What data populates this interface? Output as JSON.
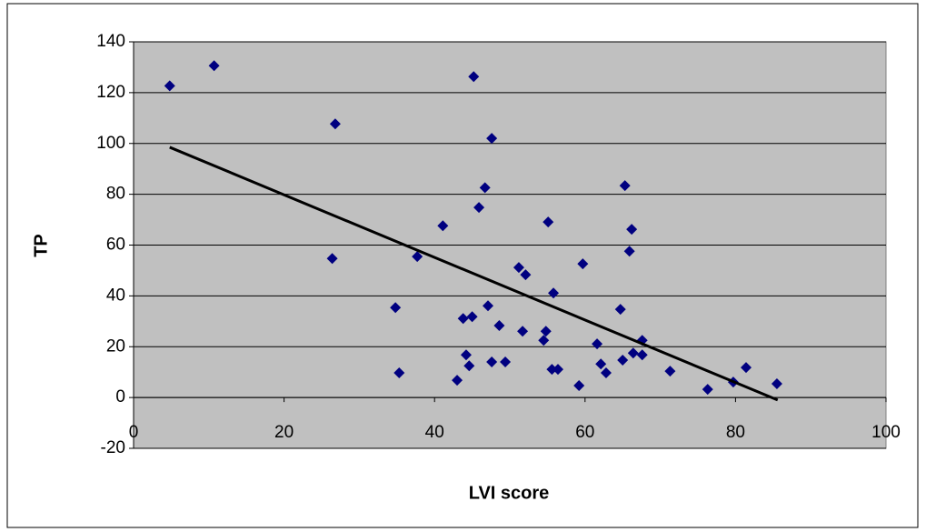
{
  "chart_data": {
    "type": "scatter",
    "x_label": "LVI score",
    "y_label": "TP",
    "x": [
      4.8,
      10.7,
      26.8,
      26.4,
      45.2,
      47.6,
      34.8,
      35.3,
      37.7,
      41.1,
      43.0,
      43.8,
      44.2,
      44.6,
      45.0,
      45.9,
      46.7,
      47.1,
      47.6,
      48.6,
      49.4,
      51.2,
      52.1,
      51.7,
      54.5,
      54.8,
      55.1,
      55.8,
      55.6,
      56.4,
      59.2,
      59.7,
      61.6,
      62.1,
      62.8,
      64.7,
      65.0,
      65.3,
      66.2,
      65.9,
      66.4,
      67.6,
      67.6,
      71.3,
      76.3,
      79.7,
      81.4,
      85.5
    ],
    "values": [
      122.7,
      130.6,
      107.7,
      54.7,
      126.3,
      102,
      35.4,
      9.7,
      55.5,
      67.6,
      6.8,
      31.1,
      16.8,
      12.5,
      31.8,
      74.8,
      82.6,
      36.1,
      14.0,
      28.3,
      14.0,
      51.2,
      48.3,
      26.1,
      22.5,
      26.1,
      69.1,
      41.1,
      11.1,
      11.1,
      4.7,
      52.6,
      21.1,
      13.2,
      9.7,
      34.7,
      14.7,
      83.4,
      66.2,
      57.6,
      17.5,
      22.5,
      16.8,
      10.4,
      3.2,
      6.1,
      11.8,
      5.4
    ],
    "color": "#000080",
    "trendline": {
      "x": [
        4.8,
        85.6
      ],
      "values": [
        98.5,
        -1
      ],
      "color": "#000000"
    },
    "xlim": [
      0,
      100
    ],
    "xticks": [
      0,
      20,
      40,
      60,
      80,
      100
    ],
    "ylim": [
      -20,
      140
    ],
    "yticks": [
      -20,
      0,
      20,
      40,
      60,
      80,
      100,
      120,
      140
    ],
    "grid": true,
    "plot_background": "#c0c0c0"
  }
}
